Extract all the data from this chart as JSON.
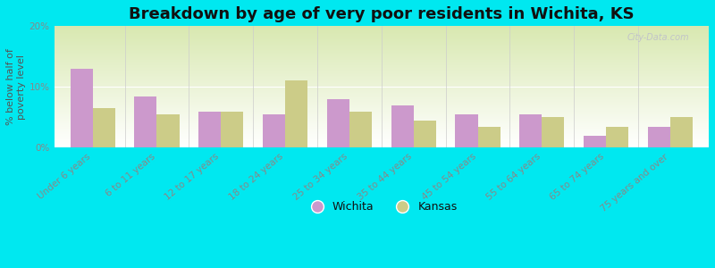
{
  "categories": [
    "Under 6 years",
    "6 to 11 years",
    "12 to 17 years",
    "18 to 24 years",
    "25 to 34 years",
    "35 to 44 years",
    "45 to 54 years",
    "55 to 64 years",
    "65 to 74 years",
    "75 years and over"
  ],
  "wichita": [
    13.0,
    8.5,
    6.0,
    5.5,
    8.0,
    7.0,
    5.5,
    5.5,
    2.0,
    3.5
  ],
  "kansas": [
    6.5,
    5.5,
    6.0,
    11.0,
    6.0,
    4.5,
    3.5,
    5.0,
    3.5,
    5.0
  ],
  "wichita_color": "#cc99cc",
  "kansas_color": "#cccc88",
  "background_outer": "#00e8f0",
  "background_plot_top": "#d8e8b0",
  "background_plot_bottom": "#ffffff",
  "title": "Breakdown by age of very poor residents in Wichita, KS",
  "ylabel": "% below half of\npoverty level",
  "ylim": [
    0,
    20
  ],
  "yticks": [
    0,
    10,
    20
  ],
  "ytick_labels": [
    "0%",
    "10%",
    "20%"
  ],
  "bar_width": 0.35,
  "title_fontsize": 13,
  "axis_label_fontsize": 8,
  "tick_fontsize": 7.5,
  "legend_fontsize": 9,
  "watermark": "City-Data.com"
}
